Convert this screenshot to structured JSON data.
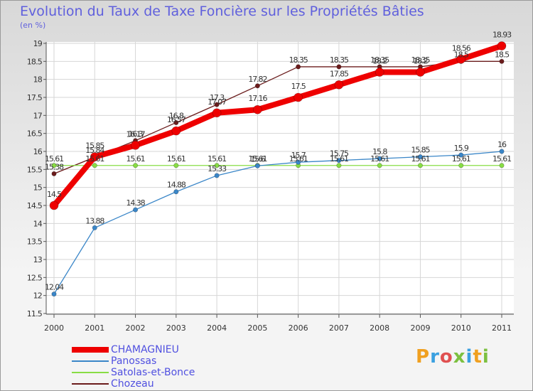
{
  "chart_data": {
    "type": "line",
    "title": "Evolution du Taux de Taxe Foncière sur les Propriétés Bâties",
    "ylabel": "(en %)",
    "xlabel": "",
    "ylim": [
      11.5,
      19
    ],
    "yticks": [
      11.5,
      12,
      12.5,
      13,
      13.5,
      14,
      14.5,
      15,
      15.5,
      16,
      16.5,
      17,
      17.5,
      18,
      18.5,
      19
    ],
    "x": [
      "2000",
      "2001",
      "2002",
      "2003",
      "2004",
      "2005",
      "2006",
      "2007",
      "2008",
      "2009",
      "2010",
      "2011"
    ],
    "grid": true,
    "series": [
      {
        "name": "Chozeau",
        "color": "#6b1c1c",
        "values": [
          15.38,
          15.84,
          16.3,
          16.8,
          17.3,
          17.82,
          18.35,
          18.35,
          18.35,
          18.35,
          18.5,
          18.5
        ]
      },
      {
        "name": "Satolas-et-Bonce",
        "color": "#88dd44",
        "values": [
          15.61,
          15.61,
          15.61,
          15.61,
          15.61,
          15.61,
          15.61,
          15.61,
          15.61,
          15.61,
          15.61,
          15.61
        ]
      },
      {
        "name": "Panossas",
        "color": "#3a86c8",
        "values": [
          12.04,
          13.88,
          14.38,
          14.88,
          15.33,
          15.6,
          15.7,
          15.75,
          15.8,
          15.85,
          15.9,
          16.0
        ]
      },
      {
        "name": "CHAMAGNIEU",
        "color": "#ee0000",
        "values": [
          14.5,
          15.85,
          16.17,
          16.57,
          17.07,
          17.16,
          17.5,
          17.85,
          18.2,
          18.2,
          18.56,
          18.93
        ]
      }
    ],
    "legend_order": [
      "CHAMAGNIEU",
      "Panossas",
      "Satolas-et-Bonce",
      "Chozeau"
    ]
  },
  "branding": {
    "logo_text": "Proxiti"
  }
}
